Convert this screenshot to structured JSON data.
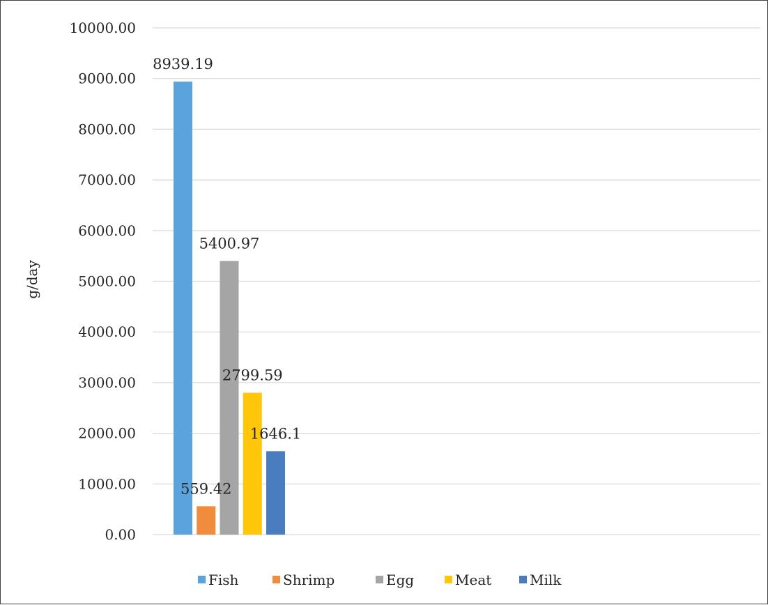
{
  "chart_data": {
    "type": "bar",
    "ylabel": "g/day",
    "ylim": [
      0,
      10000
    ],
    "y_ticks": [
      "0.00",
      "1000.00",
      "2000.00",
      "3000.00",
      "4000.00",
      "5000.00",
      "6000.00",
      "7000.00",
      "8000.00",
      "9000.00",
      "10000.00"
    ],
    "grid": true,
    "legend_position": "bottom",
    "series": [
      {
        "name": "Fish",
        "value": 8939.19,
        "label": "8939.19",
        "color": "#5ba3dc"
      },
      {
        "name": "Shrimp",
        "value": 559.42,
        "label": "559.42",
        "color": "#f08c3c"
      },
      {
        "name": "Egg",
        "value": 5400.97,
        "label": "5400.97",
        "color": "#a5a5a5"
      },
      {
        "name": "Meat",
        "value": 2799.59,
        "label": "2799.59",
        "color": "#ffc60a"
      },
      {
        "name": "Milk",
        "value": 1646.1,
        "label": "1646.1",
        "color": "#4a7cc0"
      }
    ]
  }
}
